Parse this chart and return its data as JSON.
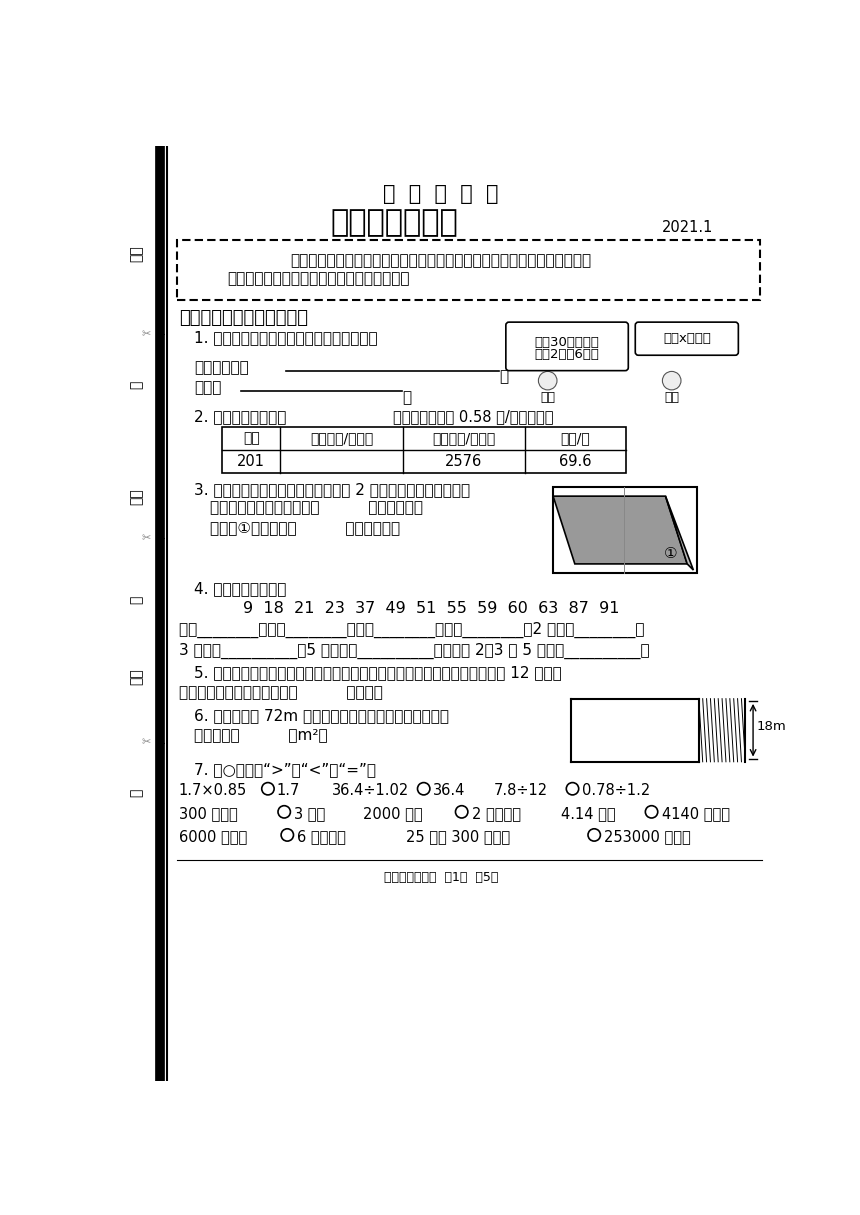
{
  "title1": "诊  断  性  测  评",
  "title2": "五年级数学试题",
  "year": "2021.1",
  "intro1": "同学们，经过一学期的努力学习，你一定收获很大吗！快来展示一下自己！",
  "intro2": "仔细读题，认真思考，相信你会取得好成绩！",
  "section1": "一、认真读题，合理填空。",
  "q1_text": "1. 根据题意写出数量关系式，并列出方程。",
  "q1_bubble1_line1": "我朂30本书，比",
  "q1_bubble1_line2": "你的2倍少6本。",
  "q1_bubble2": "我有x本书。",
  "q1_xf": "小芳",
  "q1_xq": "小强",
  "q1_label1": "数量关系式：",
  "q1_label2": "方程：",
  "q2_text": "2. 算一算、填一填。",
  "q2_note": "（电费的单价是 0.58 元/千瓦时。）",
  "table_headers": [
    "户号",
    "上次读数/千瓦时",
    "本次读数/千瓦时",
    "电费/元"
  ],
  "table_row": [
    "201",
    "",
    "2576",
    "69.6"
  ],
  "q3_text": "3. 右图中的大长方形是由两个边长为 2 厘米的小正方形拼成的。",
  "q3_line1": "涂色平行四边形的面积是（          ）平方厘米；",
  "q3_line2": "三角形①的面积是（          ）平方厘米。",
  "q4_text": "4. 分一分，填一填。",
  "q4_numbers": "9  18  21  23  37  49  51  55  59  60  63  87  91",
  "q4_line1": "质数________；合数________；奇数________；偶数________；2 的倍数________；",
  "q4_line2": "3 的倍数__________；5 的倍数：__________；同时是 2、3 和 5 的倍数__________；",
  "q5_text": "5. 一个三角形和一个平行四边形的底相等，面积也相等。如果三角形的高是 12 厘米，",
  "q5_line2": "那么这个平行四边形的高是（          ）厘米。",
  "q6_text": "6. 如下图，用 72m 长的篱筆靠墙围一块菜地，这块菜地",
  "q6_line2": "的面积是（          ）m²。",
  "q7_text": "7. 在○里填上“>”、“<”或“=”。",
  "footer": "五年级数学试题  第1页  共5页",
  "bg_color": "#ffffff",
  "border_color": "#000000",
  "text_color": "#000000"
}
